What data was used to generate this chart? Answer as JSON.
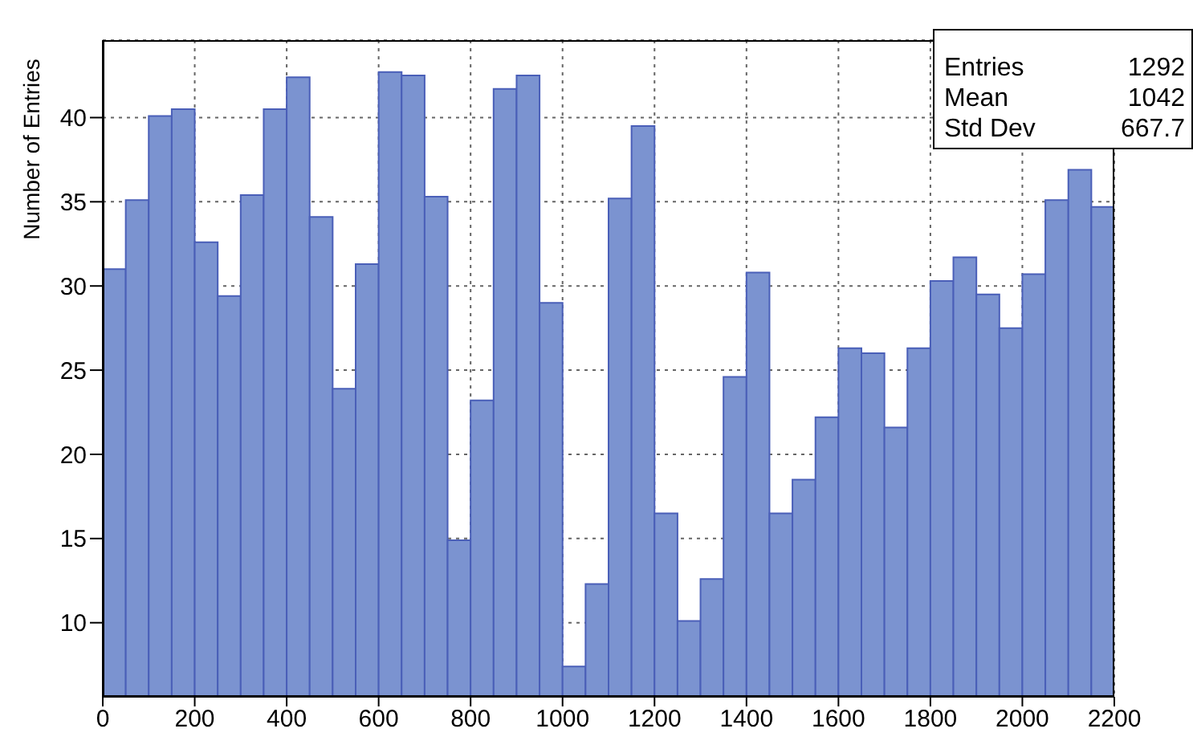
{
  "chart_data": {
    "type": "histogram",
    "ylabel": "Number of Entries",
    "bins": [
      0,
      50,
      100,
      150,
      200,
      250,
      300,
      350,
      400,
      450,
      500,
      550,
      600,
      650,
      700,
      750,
      800,
      850,
      900,
      950,
      1000,
      1050,
      1100,
      1150,
      1200,
      1250,
      1300,
      1350,
      1400,
      1450,
      1500,
      1550,
      1600,
      1650,
      1700,
      1750,
      1800,
      1850,
      1900,
      1950,
      2000,
      2050,
      2100,
      2150,
      2200
    ],
    "values": [
      31,
      35.1,
      40.1,
      40.5,
      32.6,
      29.4,
      35.4,
      40.5,
      42.4,
      34.1,
      23.9,
      31.3,
      42.7,
      42.5,
      35.3,
      14.9,
      23.2,
      41.7,
      42.5,
      29,
      7.4,
      12.3,
      35.2,
      39.5,
      16.5,
      10.1,
      12.6,
      24.6,
      30.8,
      16.5,
      18.5,
      22.2,
      26.3,
      26,
      21.6,
      26.3,
      30.3,
      31.7,
      29.5,
      27.5,
      30.7,
      35.1,
      36.9,
      34.7
    ],
    "color": "#7b93d0",
    "xlim": [
      0,
      2200
    ],
    "xticks": [
      0,
      200,
      400,
      600,
      800,
      1000,
      1200,
      1400,
      1600,
      1800,
      2000,
      2200
    ],
    "ylim": [
      5.6,
      44.6
    ],
    "yticks": [
      10,
      15,
      20,
      25,
      30,
      35,
      40
    ],
    "grid": true,
    "annotations": [
      "Entries",
      "1292",
      "Mean",
      "1042",
      "Std Dev",
      "667.7"
    ]
  }
}
